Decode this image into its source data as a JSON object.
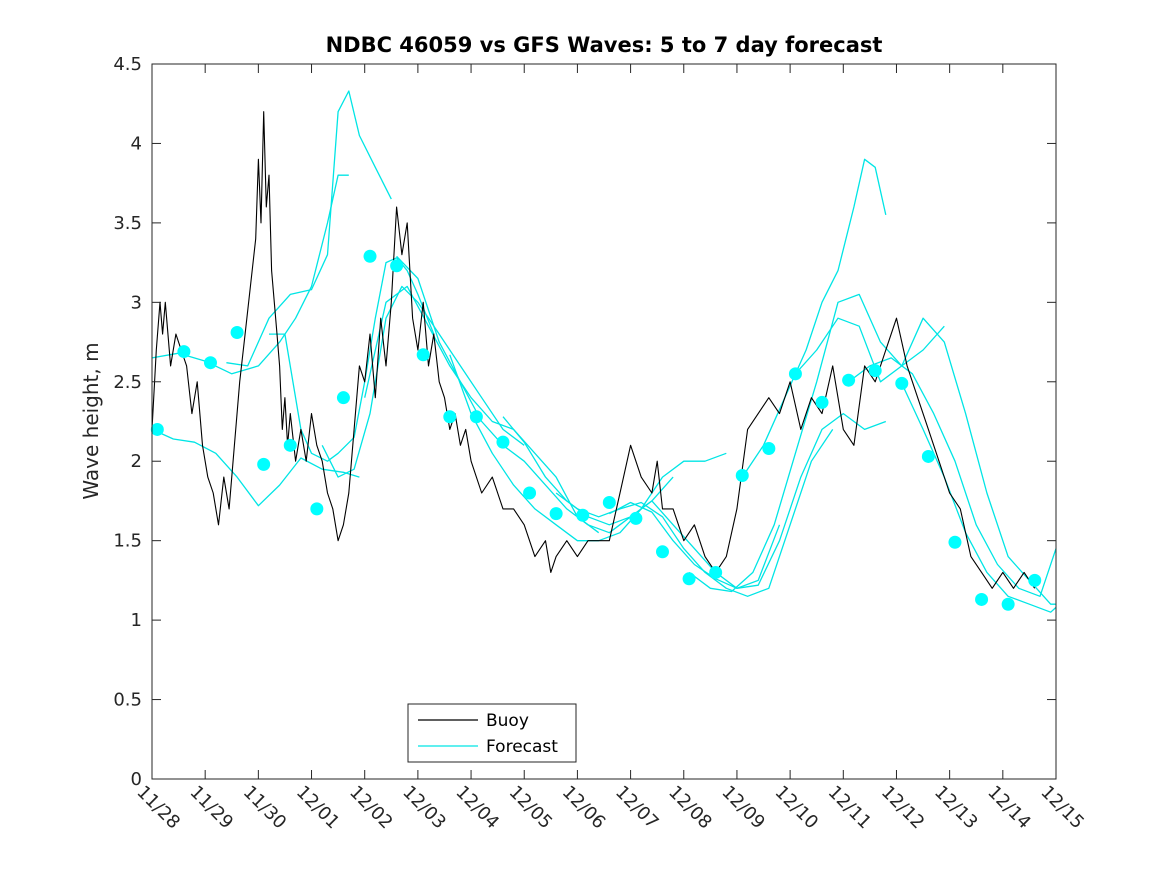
{
  "chart_data": {
    "type": "line",
    "title": "NDBC 46059 vs GFS Waves: 5 to 7 day forecast",
    "xlabel": "",
    "ylabel": "Wave height, m",
    "xlim": [
      0,
      17
    ],
    "ylim": [
      0,
      4.5
    ],
    "yticks": [
      0,
      0.5,
      1,
      1.5,
      2,
      2.5,
      3,
      3.5,
      4,
      4.5
    ],
    "ytick_labels": [
      "0",
      "0.5",
      "1",
      "1.5",
      "2",
      "2.5",
      "3",
      "3.5",
      "4",
      "4.5"
    ],
    "xtick_labels": [
      "11/28",
      "11/29",
      "11/30",
      "12/01",
      "12/02",
      "12/03",
      "12/04",
      "12/05",
      "12/06",
      "12/07",
      "12/08",
      "12/09",
      "12/10",
      "12/11",
      "12/12",
      "12/13",
      "12/14",
      "12/15"
    ],
    "legend": {
      "position": "bottom-center",
      "entries": [
        {
          "label": "Buoy",
          "color": "#000000"
        },
        {
          "label": "Forecast",
          "color": "#00e5e5"
        }
      ]
    },
    "colors": {
      "buoy": "#000000",
      "forecast": "#00e5e5",
      "marker": "#00ffff"
    },
    "series": [
      {
        "name": "Buoy",
        "x": [
          0,
          0.08,
          0.15,
          0.2,
          0.25,
          0.35,
          0.45,
          0.55,
          0.65,
          0.75,
          0.85,
          0.95,
          1.05,
          1.15,
          1.25,
          1.35,
          1.45,
          1.55,
          1.65,
          1.75,
          1.85,
          1.95,
          2.0,
          2.05,
          2.1,
          2.15,
          2.2,
          2.25,
          2.3,
          2.35,
          2.4,
          2.45,
          2.5,
          2.55,
          2.6,
          2.7,
          2.8,
          2.9,
          3.0,
          3.1,
          3.2,
          3.3,
          3.4,
          3.5,
          3.6,
          3.7,
          3.8,
          3.9,
          4.0,
          4.1,
          4.2,
          4.3,
          4.4,
          4.5,
          4.6,
          4.7,
          4.8,
          4.9,
          5.0,
          5.1,
          5.2,
          5.3,
          5.4,
          5.5,
          5.6,
          5.7,
          5.8,
          5.9,
          6.0,
          6.2,
          6.4,
          6.6,
          6.8,
          7.0,
          7.2,
          7.4,
          7.5,
          7.6,
          7.8,
          8.0,
          8.2,
          8.4,
          8.6,
          8.8,
          9.0,
          9.2,
          9.4,
          9.5,
          9.6,
          9.8,
          10.0,
          10.2,
          10.4,
          10.6,
          10.8,
          11.0,
          11.2,
          11.4,
          11.6,
          11.8,
          12.0,
          12.2,
          12.4,
          12.6,
          12.8,
          13.0,
          13.2,
          13.4,
          13.6,
          13.8,
          14.0,
          14.2,
          14.4,
          14.6,
          14.8,
          15.0,
          15.2,
          15.4,
          15.6,
          15.8,
          16.0,
          16.2,
          16.4,
          16.6
        ],
        "y": [
          2.2,
          2.7,
          3.0,
          2.8,
          3.0,
          2.6,
          2.8,
          2.7,
          2.6,
          2.3,
          2.5,
          2.1,
          1.9,
          1.8,
          1.6,
          1.9,
          1.7,
          2.1,
          2.5,
          2.8,
          3.1,
          3.4,
          3.9,
          3.5,
          4.2,
          3.6,
          3.8,
          3.2,
          3.0,
          2.8,
          2.6,
          2.2,
          2.4,
          2.1,
          2.3,
          2.0,
          2.2,
          2.0,
          2.3,
          2.1,
          2.0,
          1.8,
          1.7,
          1.5,
          1.6,
          1.8,
          2.2,
          2.6,
          2.5,
          2.8,
          2.4,
          2.9,
          2.6,
          3.0,
          3.6,
          3.3,
          3.5,
          2.9,
          2.7,
          3.0,
          2.6,
          2.8,
          2.5,
          2.4,
          2.2,
          2.3,
          2.1,
          2.2,
          2.0,
          1.8,
          1.9,
          1.7,
          1.7,
          1.6,
          1.4,
          1.5,
          1.3,
          1.4,
          1.5,
          1.4,
          1.5,
          1.5,
          1.5,
          1.8,
          2.1,
          1.9,
          1.8,
          2.0,
          1.7,
          1.7,
          1.5,
          1.6,
          1.4,
          1.3,
          1.4,
          1.7,
          2.2,
          2.3,
          2.4,
          2.3,
          2.5,
          2.2,
          2.4,
          2.3,
          2.6,
          2.2,
          2.1,
          2.6,
          2.5,
          2.7,
          2.9,
          2.6,
          2.4,
          2.2,
          2.0,
          1.8,
          1.7,
          1.4,
          1.3,
          1.2,
          1.3,
          1.2,
          1.3,
          1.2
        ]
      },
      {
        "name": "Forecast",
        "runs": [
          {
            "x": [
              0,
              0.4,
              0.8,
              1.2,
              1.6,
              2.0,
              2.4,
              2.8,
              3.2,
              3.6,
              3.9
            ],
            "y": [
              2.2,
              2.14,
              2.12,
              2.05,
              1.9,
              1.72,
              1.85,
              2.02,
              1.95,
              1.93,
              1.9
            ]
          },
          {
            "x": [
              0,
              0.5,
              1.0,
              1.5,
              2.0,
              2.4,
              2.7,
              3.0,
              3.3,
              3.5,
              3.7
            ],
            "y": [
              2.65,
              2.68,
              2.63,
              2.55,
              2.6,
              2.75,
              2.9,
              3.1,
              3.5,
              3.8,
              3.8
            ]
          },
          {
            "x": [
              1.4,
              1.8,
              2.2,
              2.6,
              3.0,
              3.3,
              3.5,
              3.7,
              3.9,
              4.2,
              4.5
            ],
            "y": [
              2.62,
              2.6,
              2.9,
              3.05,
              3.08,
              3.3,
              4.2,
              4.33,
              4.05,
              3.85,
              3.65
            ]
          },
          {
            "x": [
              2.2,
              2.5,
              2.8,
              3.0,
              3.3,
              3.5,
              3.8,
              4.0,
              4.2,
              4.4,
              4.6,
              4.8,
              5.0,
              5.3
            ],
            "y": [
              2.8,
              2.8,
              2.2,
              2.05,
              2.0,
              2.05,
              2.15,
              2.5,
              2.9,
              3.25,
              3.28,
              3.2,
              3.05,
              2.8
            ]
          },
          {
            "x": [
              3.2,
              3.5,
              3.8,
              4.1,
              4.4,
              4.7,
              5.0,
              5.4,
              5.8,
              6.2,
              6.6,
              7.0
            ],
            "y": [
              2.1,
              1.9,
              1.95,
              2.3,
              2.9,
              3.1,
              3.0,
              2.8,
              2.6,
              2.4,
              2.2,
              2.1
            ]
          },
          {
            "x": [
              4.0,
              4.4,
              4.8,
              5.2,
              5.6,
              6.0,
              6.4,
              6.8,
              7.2,
              7.6,
              8.0,
              8.4
            ],
            "y": [
              2.4,
              3.0,
              3.1,
              2.85,
              2.6,
              2.4,
              2.25,
              2.2,
              2.05,
              1.9,
              1.65,
              1.55
            ]
          },
          {
            "x": [
              4.6,
              5.0,
              5.4,
              5.8,
              6.2,
              6.6,
              7.0,
              7.4,
              7.8,
              8.2,
              8.6,
              9.0,
              9.4,
              9.8
            ],
            "y": [
              3.29,
              3.15,
              2.75,
              2.5,
              2.25,
              2.1,
              2.0,
              1.85,
              1.7,
              1.6,
              1.55,
              1.65,
              1.75,
              1.9
            ]
          },
          {
            "x": [
              5.6,
              6.0,
              6.4,
              6.8,
              7.2,
              7.6,
              8.0,
              8.4,
              8.8,
              9.2,
              9.6,
              10.0,
              10.4,
              10.8
            ],
            "y": [
              2.67,
              2.3,
              2.05,
              1.85,
              1.7,
              1.6,
              1.5,
              1.5,
              1.55,
              1.7,
              1.9,
              2.0,
              2.0,
              2.05
            ]
          },
          {
            "x": [
              6.6,
              7.0,
              7.4,
              7.8,
              8.2,
              8.6,
              9.0,
              9.4,
              9.8,
              10.2,
              10.6,
              11.0,
              11.4,
              11.8
            ],
            "y": [
              2.28,
              2.12,
              1.9,
              1.75,
              1.65,
              1.6,
              1.65,
              1.75,
              1.6,
              1.45,
              1.3,
              1.2,
              1.25,
              1.6
            ]
          },
          {
            "x": [
              7.6,
              8.0,
              8.4,
              8.8,
              9.2,
              9.6,
              10.0,
              10.4,
              10.8,
              11.2,
              11.6,
              12.0,
              12.4,
              12.8
            ],
            "y": [
              1.8,
              1.7,
              1.65,
              1.7,
              1.74,
              1.65,
              1.45,
              1.3,
              1.2,
              1.15,
              1.2,
              1.6,
              2.0,
              2.2
            ]
          },
          {
            "x": [
              8.6,
              9.0,
              9.4,
              9.8,
              10.2,
              10.6,
              11.0,
              11.4,
              11.8,
              12.2,
              12.6,
              13.0,
              13.4,
              13.8
            ],
            "y": [
              1.67,
              1.74,
              1.68,
              1.5,
              1.35,
              1.26,
              1.2,
              1.22,
              1.5,
              1.9,
              2.2,
              2.3,
              2.2,
              2.25
            ]
          },
          {
            "x": [
              10.1,
              10.5,
              10.9,
              11.3,
              11.7,
              12.1,
              12.5,
              12.9,
              13.3,
              13.7,
              14.1,
              14.5,
              14.9
            ],
            "y": [
              1.3,
              1.2,
              1.18,
              1.3,
              1.6,
              2.05,
              2.5,
              3.0,
              3.05,
              2.75,
              2.6,
              2.7,
              2.85
            ]
          },
          {
            "x": [
              11.1,
              11.5,
              11.9,
              12.3,
              12.6,
              12.9,
              13.2,
              13.4,
              13.6,
              13.8
            ],
            "y": [
              1.9,
              2.1,
              2.4,
              2.7,
              3.0,
              3.2,
              3.6,
              3.9,
              3.85,
              3.55
            ]
          },
          {
            "x": [
              12.1,
              12.5,
              12.9,
              13.3,
              13.7,
              14.1,
              14.5,
              14.9,
              15.3,
              15.7,
              16.1,
              16.5,
              16.9,
              17.0
            ],
            "y": [
              2.55,
              2.7,
              2.9,
              2.85,
              2.5,
              2.6,
              2.9,
              2.75,
              2.3,
              1.8,
              1.4,
              1.25,
              1.1,
              1.1
            ]
          },
          {
            "x": [
              13.1,
              13.5,
              13.9,
              14.3,
              14.7,
              15.1,
              15.5,
              15.9,
              16.3,
              16.7,
              17.0
            ],
            "y": [
              2.5,
              2.6,
              2.65,
              2.55,
              2.3,
              2.0,
              1.6,
              1.35,
              1.2,
              1.15,
              1.45
            ]
          },
          {
            "x": [
              14.1,
              14.5,
              14.9,
              15.3,
              15.7,
              16.1,
              16.5,
              16.9,
              17.0
            ],
            "y": [
              2.49,
              2.2,
              1.9,
              1.55,
              1.3,
              1.15,
              1.1,
              1.05,
              1.08
            ]
          }
        ]
      },
      {
        "name": "Forecast markers",
        "x": [
          0.1,
          0.6,
          1.1,
          1.6,
          2.1,
          2.6,
          3.1,
          3.6,
          4.1,
          4.6,
          5.1,
          5.6,
          6.1,
          6.6,
          7.1,
          7.6,
          8.1,
          8.6,
          9.1,
          9.6,
          10.1,
          10.6,
          11.1,
          11.6,
          12.1,
          12.6,
          13.1,
          13.6,
          14.1,
          14.6,
          15.1,
          15.6,
          16.1,
          16.6
        ],
        "y": [
          2.2,
          2.69,
          2.62,
          2.81,
          1.98,
          2.1,
          1.7,
          2.4,
          3.29,
          3.23,
          2.67,
          2.28,
          2.28,
          2.12,
          1.8,
          1.67,
          1.66,
          1.74,
          1.64,
          1.43,
          1.26,
          1.3,
          1.91,
          2.08,
          2.55,
          2.37,
          2.51,
          2.57,
          2.49,
          2.03,
          1.49,
          1.13,
          1.1,
          1.25
        ]
      }
    ]
  }
}
